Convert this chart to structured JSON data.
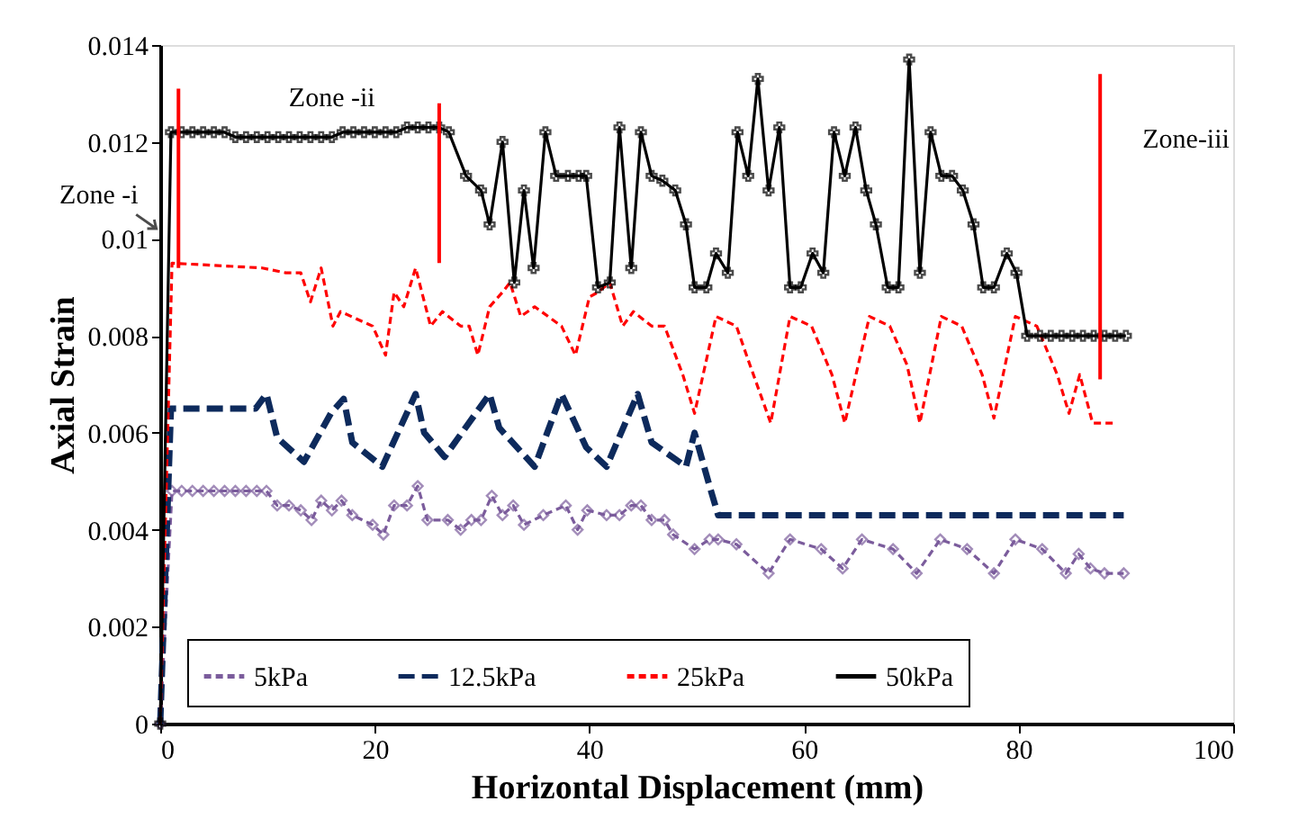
{
  "chart_data": {
    "type": "line",
    "xlabel": "Horizontal Displacement (mm)",
    "ylabel": "Axial Strain",
    "xlim": [
      0,
      100
    ],
    "xticks": [
      0,
      20,
      40,
      60,
      80,
      100
    ],
    "ylim": [
      0,
      0.014
    ],
    "yticks": [
      0,
      0.002,
      0.004,
      0.006,
      0.008,
      0.01,
      0.012,
      0.014
    ],
    "grid": false,
    "legend": "bottom",
    "annotations": [
      {
        "text": "Zone -i",
        "x": 0.3,
        "y": 0.0101
      },
      "Zone -ii",
      "Zone-iii"
    ],
    "series": [
      {
        "name": "5kPa",
        "color": "#7b5c9c",
        "line_style": "dashed",
        "marker": "diamond",
        "x": [
          0,
          1.1,
          2,
          3,
          4,
          5,
          6,
          7,
          8,
          9,
          9.9,
          10.9,
          12,
          13.1,
          14.1,
          15,
          16,
          16.9,
          17.9,
          19.8,
          20.8,
          21.8,
          23,
          24,
          24.9,
          26.8,
          28,
          29,
          29.9,
          30.9,
          31.9,
          32.9,
          33.9,
          35.7,
          37.8,
          38.9,
          39.8,
          41.6,
          42.8,
          43.9,
          44.8,
          45.8,
          47,
          47.8,
          49.8,
          51.2,
          52,
          53.7,
          56.7,
          58.7,
          61.6,
          63.6,
          65.4,
          68.3,
          70.5,
          72.7,
          75.2,
          77.7,
          79.7,
          82.2,
          84.4,
          85.6,
          86.7,
          88,
          89.8
        ],
        "values": [
          0,
          0.0048,
          0.0048,
          0.0048,
          0.0048,
          0.0048,
          0.0048,
          0.0048,
          0.0048,
          0.0048,
          0.0048,
          0.0045,
          0.0045,
          0.0044,
          0.0042,
          0.0046,
          0.0044,
          0.0046,
          0.0043,
          0.0041,
          0.0039,
          0.0045,
          0.0045,
          0.0049,
          0.0042,
          0.0042,
          0.004,
          0.0042,
          0.0042,
          0.0047,
          0.0043,
          0.0045,
          0.0041,
          0.0043,
          0.0045,
          0.004,
          0.0044,
          0.0043,
          0.0043,
          0.0045,
          0.0045,
          0.0042,
          0.0042,
          0.0039,
          0.0036,
          0.0038,
          0.0038,
          0.0037,
          0.0031,
          0.0038,
          0.0036,
          0.0032,
          0.0038,
          0.0036,
          0.0031,
          0.0038,
          0.0036,
          0.0031,
          0.0038,
          0.0036,
          0.0031,
          0.0035,
          0.0032,
          0.0031,
          0.0031
        ]
      },
      {
        "name": "12.5kPa",
        "color": "#0d2a5c",
        "line_style": "dashed",
        "marker": "none",
        "x": [
          0,
          1,
          8.9,
          9.9,
          10.9,
          13.4,
          15.9,
          17.1,
          17.9,
          20.7,
          23.8,
          24.6,
          26.5,
          30.7,
          31.6,
          34.9,
          37.4,
          39.7,
          41.6,
          44.5,
          45.8,
          49,
          49.8,
          51.2,
          52,
          89.8
        ],
        "values": [
          0,
          0.0065,
          0.0065,
          0.0068,
          0.0059,
          0.0054,
          0.0064,
          0.0067,
          0.0058,
          0.0053,
          0.0068,
          0.006,
          0.0055,
          0.0068,
          0.0061,
          0.0053,
          0.0068,
          0.0057,
          0.0053,
          0.0068,
          0.0058,
          0.0053,
          0.006,
          0.0049,
          0.0043,
          0.0043
        ]
      },
      {
        "name": "25kPa",
        "color": "#ff0000",
        "line_style": "dashed",
        "marker": "none",
        "x": [
          0,
          1.1,
          9.5,
          11.7,
          13.1,
          14,
          15,
          16.1,
          16.8,
          19.8,
          21,
          21.8,
          22.7,
          23.8,
          25.2,
          26.3,
          28,
          28.8,
          29.6,
          30.7,
          31.9,
          32.6,
          33.6,
          34.9,
          37.4,
          38.7,
          40,
          40.8,
          41.9,
          43.1,
          44.1,
          45.8,
          47,
          48.7,
          49.8,
          51.8,
          53.7,
          54.8,
          56.9,
          58.7,
          60.7,
          62.6,
          63.8,
          66.1,
          68,
          69.6,
          70.8,
          72.8,
          74.7,
          76.6,
          77.7,
          79.7,
          81.7,
          83.6,
          84.7,
          85.7,
          86.9,
          88.9
        ],
        "values": [
          0,
          0.0095,
          0.0094,
          0.0093,
          0.0093,
          0.0087,
          0.0094,
          0.0082,
          0.0085,
          0.0082,
          0.0076,
          0.0089,
          0.0086,
          0.0094,
          0.0082,
          0.0085,
          0.0082,
          0.0082,
          0.0076,
          0.0086,
          0.0089,
          0.0091,
          0.0084,
          0.0086,
          0.0082,
          0.0076,
          0.0088,
          0.0089,
          0.0091,
          0.0082,
          0.0085,
          0.0082,
          0.0082,
          0.0072,
          0.0064,
          0.0084,
          0.0082,
          0.0075,
          0.0062,
          0.0084,
          0.0082,
          0.0072,
          0.0062,
          0.0084,
          0.0082,
          0.0074,
          0.0062,
          0.0084,
          0.0082,
          0.0072,
          0.0063,
          0.0084,
          0.0082,
          0.0072,
          0.0064,
          0.0072,
          0.0062,
          0.0062
        ]
      },
      {
        "name": "50kPa",
        "color": "#000000",
        "line_style": "solid",
        "marker": "cross",
        "x": [
          0,
          1,
          2,
          3,
          4,
          5,
          6,
          7,
          8,
          9,
          10,
          11,
          12,
          13,
          14,
          15,
          16,
          17,
          18,
          19,
          20,
          21,
          22,
          23,
          24,
          25,
          26,
          26.9,
          28.5,
          29.9,
          30.7,
          31.9,
          33,
          33.9,
          34.8,
          35.9,
          36.9,
          38,
          39,
          39.7,
          40.8,
          41.9,
          42.8,
          43.9,
          44.8,
          45.8,
          46.8,
          48,
          49,
          49.8,
          50.9,
          51.8,
          52.9,
          53.8,
          54.8,
          55.7,
          56.7,
          57.7,
          58.7,
          59.7,
          60.8,
          61.8,
          62.8,
          63.8,
          64.8,
          65.8,
          66.7,
          67.8,
          68.8,
          69.8,
          70.8,
          71.8,
          72.8,
          73.8,
          74.8,
          75.8,
          76.7,
          77.7,
          78.9,
          79.8,
          80.8,
          82,
          83,
          84,
          85,
          86,
          87,
          88,
          89,
          90
        ],
        "values": [
          0,
          0.0122,
          0.0122,
          0.0122,
          0.0122,
          0.0122,
          0.0122,
          0.0121,
          0.0121,
          0.0121,
          0.0121,
          0.0121,
          0.0121,
          0.0121,
          0.0121,
          0.0121,
          0.0121,
          0.0122,
          0.0122,
          0.0122,
          0.0122,
          0.0122,
          0.0122,
          0.0123,
          0.0123,
          0.0123,
          0.0123,
          0.0122,
          0.0113,
          0.011,
          0.0103,
          0.012,
          0.0091,
          0.011,
          0.0094,
          0.0122,
          0.0113,
          0.0113,
          0.0113,
          0.0113,
          0.009,
          0.0091,
          0.0123,
          0.0094,
          0.0122,
          0.0113,
          0.0112,
          0.011,
          0.0103,
          0.009,
          0.009,
          0.0097,
          0.0093,
          0.0122,
          0.0113,
          0.0133,
          0.011,
          0.0123,
          0.009,
          0.009,
          0.0097,
          0.0093,
          0.0122,
          0.0113,
          0.0123,
          0.011,
          0.0103,
          0.009,
          0.009,
          0.0137,
          0.0093,
          0.0122,
          0.0113,
          0.0113,
          0.011,
          0.0103,
          0.009,
          0.009,
          0.0097,
          0.0093,
          0.008,
          0.008,
          0.008,
          0.008,
          0.008,
          0.008,
          0.008,
          0.008,
          0.008,
          0.008
        ]
      },
      {
        "color": "#ff0000",
        "line_style": "solid",
        "marker": "none",
        "x": [
          1.7,
          1.7
        ],
        "values": [
          0.0094,
          0.0131
        ]
      },
      {
        "color": "#ff0000",
        "line_style": "solid",
        "marker": "none",
        "x": [
          26,
          26
        ],
        "values": [
          0.0095,
          0.0128
        ]
      },
      {
        "color": "#ff0000",
        "line_style": "solid",
        "marker": "none",
        "x": [
          87.6,
          87.6
        ],
        "values": [
          0.0071,
          0.0134
        ]
      }
    ]
  }
}
